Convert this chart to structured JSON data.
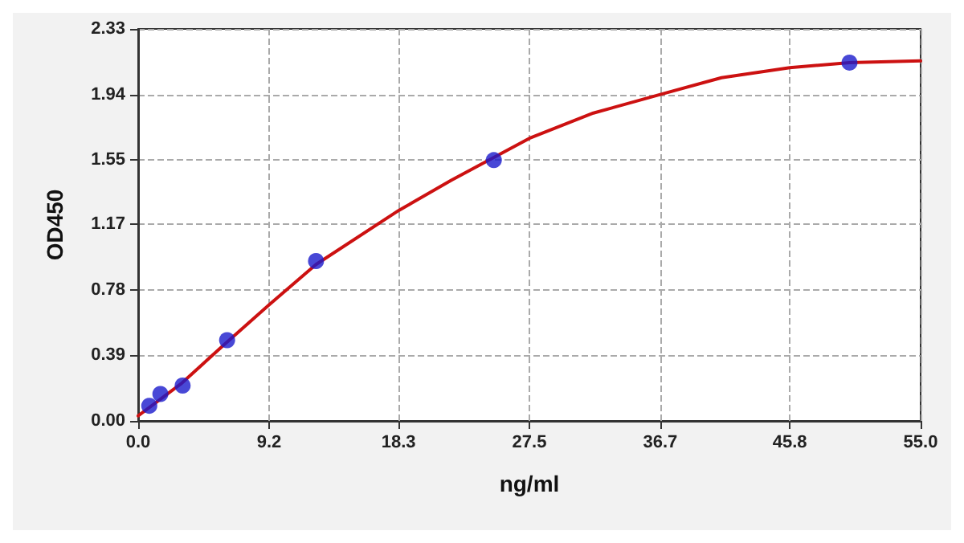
{
  "chart_data": {
    "type": "scatter",
    "xlabel": "ng/ml",
    "ylabel": "OD450",
    "xlim": [
      0,
      55
    ],
    "xticks": [
      {
        "value": 0,
        "label": "0.0"
      },
      9.2,
      18.3,
      27.5,
      36.7,
      45.8,
      {
        "value": 55,
        "label": "55.0"
      }
    ],
    "ylim": [
      0,
      2.33
    ],
    "yticks": [
      {
        "value": 0,
        "label": "0.00"
      },
      0.39,
      0.78,
      1.17,
      1.55,
      1.94,
      2.33
    ],
    "grid": true,
    "series": [
      {
        "type": "line",
        "color": "#cc1111",
        "marker": "none",
        "line_style": "solid",
        "x": [
          0,
          3,
          6,
          9.2,
          12.5,
          18.3,
          22,
          27.5,
          32,
          36.7,
          41,
          45.8,
          50,
          55
        ],
        "values": [
          0.03,
          0.22,
          0.45,
          0.69,
          0.93,
          1.25,
          1.43,
          1.68,
          1.83,
          1.94,
          2.04,
          2.1,
          2.13,
          2.14
        ]
      },
      {
        "color": "#1a1acc",
        "marker": "circle",
        "x": [
          0.78,
          1.56,
          3.125,
          6.25,
          12.5,
          25,
          50
        ],
        "values": [
          0.09,
          0.16,
          0.21,
          0.48,
          0.95,
          1.55,
          2.13
        ]
      }
    ]
  }
}
